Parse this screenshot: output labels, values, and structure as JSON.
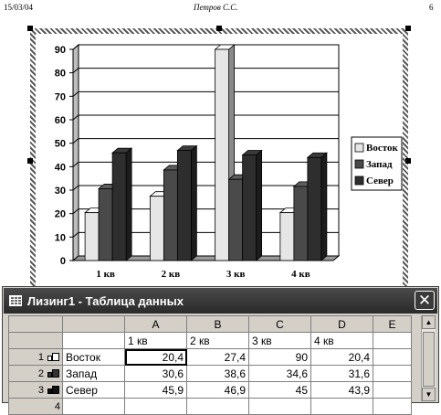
{
  "page_header": {
    "date": "15/03/04",
    "author": "Петров С.С.",
    "page_number": "6"
  },
  "chart_data": {
    "type": "bar",
    "categories": [
      "1 кв",
      "2 кв",
      "3 кв",
      "4 кв"
    ],
    "series": [
      {
        "name": "Восток",
        "values": [
          20.4,
          27.4,
          90,
          20.4
        ],
        "color": "#e6e6e6"
      },
      {
        "name": "Запад",
        "values": [
          30.6,
          38.6,
          34.6,
          31.6
        ],
        "color": "#4a4a4a"
      },
      {
        "name": "Север",
        "values": [
          45.9,
          46.9,
          45,
          43.9
        ],
        "color": "#2e2e2e"
      }
    ],
    "yticks": [
      "0",
      "10",
      "20",
      "30",
      "40",
      "50",
      "60",
      "70",
      "80",
      "90"
    ],
    "ylim": [
      0,
      90
    ],
    "grid": true,
    "legend_position": "right",
    "style": "3d-clustered-column"
  },
  "datasheet": {
    "title": "Лизинг1 - Таблица данных",
    "close_label": "✕",
    "column_letters": [
      "A",
      "B",
      "C",
      "D",
      "E"
    ],
    "header_row": [
      "1 кв",
      "2 кв",
      "3 кв",
      "4 кв",
      ""
    ],
    "rows": [
      {
        "num": "1",
        "label": "Восток",
        "values": [
          "20,4",
          "27,4",
          "90",
          "20,4",
          ""
        ]
      },
      {
        "num": "2",
        "label": "Запад",
        "values": [
          "30,6",
          "38,6",
          "34,6",
          "31,6",
          ""
        ]
      },
      {
        "num": "3",
        "label": "Север",
        "values": [
          "45,9",
          "46,9",
          "45",
          "43,9",
          ""
        ]
      },
      {
        "num": "4",
        "label": "",
        "values": [
          "",
          "",
          "",
          "",
          ""
        ]
      }
    ],
    "selected_cell": "A1"
  }
}
